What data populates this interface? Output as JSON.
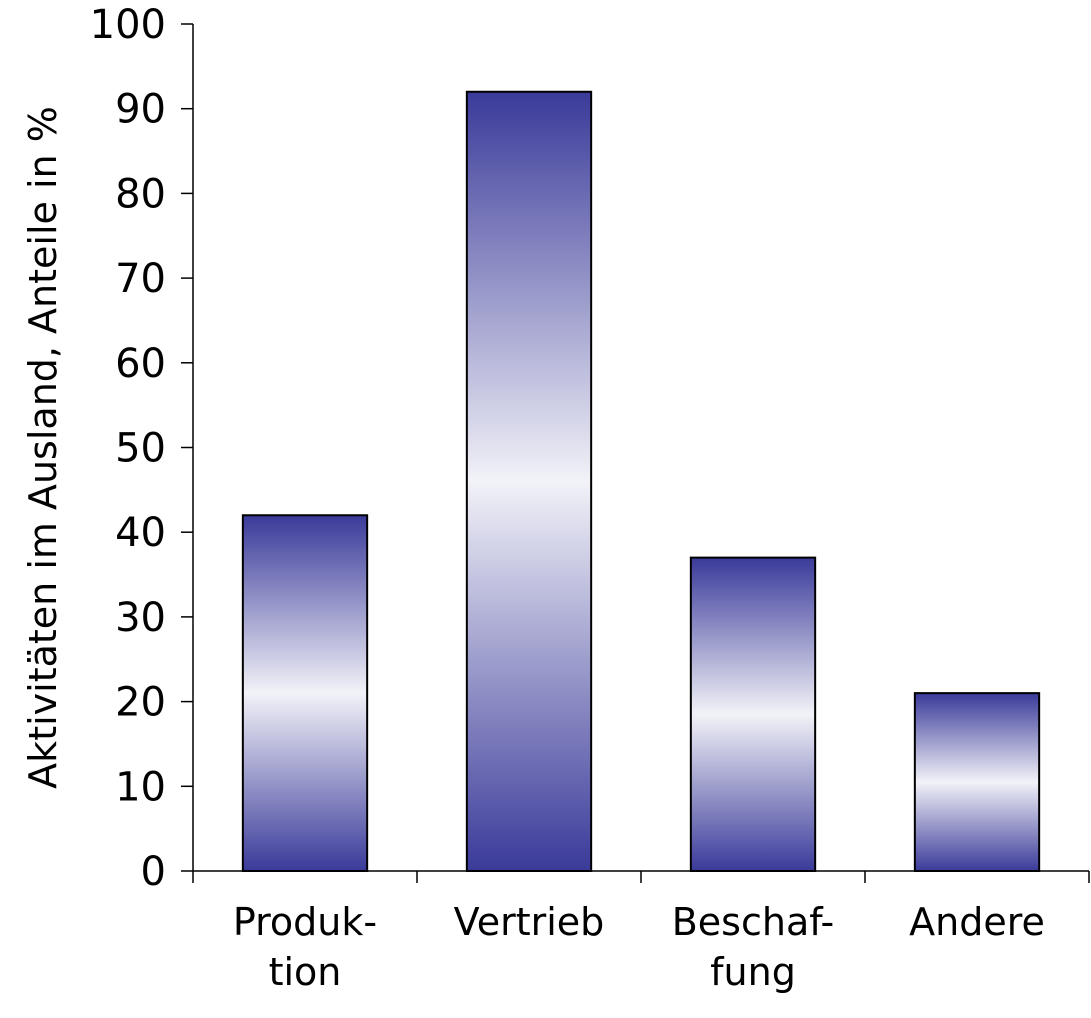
{
  "chart_data": {
    "type": "bar",
    "categories": [
      [
        "Produk-",
        "tion"
      ],
      [
        "Vertrieb"
      ],
      [
        "Beschaf-",
        "fung"
      ],
      [
        "Andere"
      ]
    ],
    "values": [
      42,
      92,
      37,
      21
    ],
    "ylabel": "Aktivitäten im Ausland, Anteile in %",
    "ylim": [
      0,
      100
    ],
    "yticks": [
      0,
      10,
      20,
      30,
      40,
      50,
      60,
      70,
      80,
      90,
      100
    ],
    "grid": false,
    "bar_color": "#3a3a9a",
    "bar_highlight": "#f2f2f8"
  }
}
